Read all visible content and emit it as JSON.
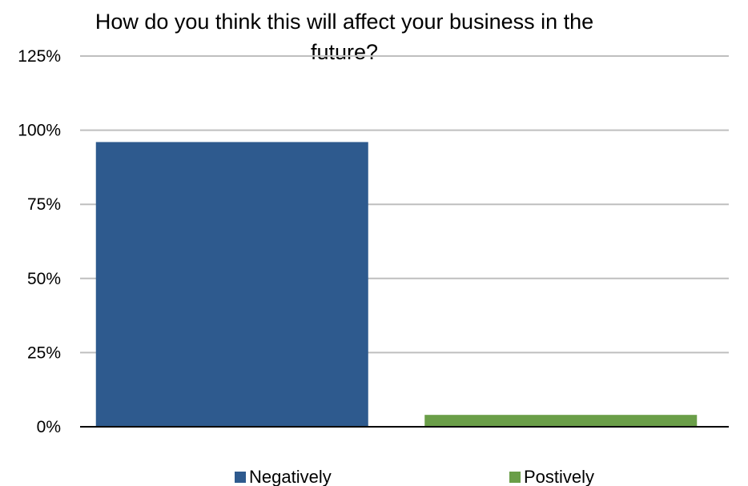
{
  "chart_data": {
    "type": "bar",
    "title_lines": [
      "How do you think this will affect your business in the",
      "future?"
    ],
    "categories": [
      "Negatively",
      "Postively"
    ],
    "values": [
      96,
      4
    ],
    "ylim": [
      0,
      125
    ],
    "yticks": [
      "0%",
      "25%",
      "50%",
      "75%",
      "100%",
      "125%"
    ],
    "ytick_values": [
      0,
      25,
      50,
      75,
      100,
      125
    ],
    "grid": true,
    "legend_position": "bottom",
    "colors": [
      "#2e5a8e",
      "#6a9e48"
    ],
    "gridline_color": "#bfbfbf",
    "axis_color": "#000000"
  }
}
